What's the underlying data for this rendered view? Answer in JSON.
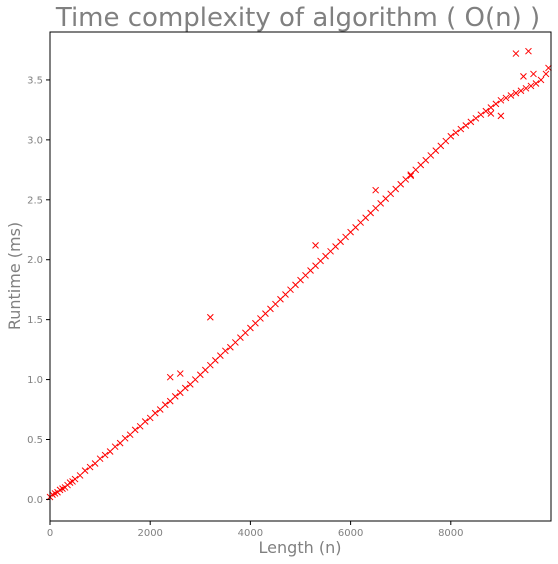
{
  "chart_data": {
    "type": "scatter",
    "title": "Time complexity of algorithm ( O(n) )",
    "xlabel": "Length (n)",
    "ylabel": "Runtime (ms)",
    "xlim": [
      0,
      10000
    ],
    "ylim": [
      -0.18,
      3.9
    ],
    "xticks": [
      0,
      2000,
      4000,
      6000,
      8000
    ],
    "yticks": [
      0.0,
      0.5,
      1.0,
      1.5,
      2.0,
      2.5,
      3.0,
      3.5
    ],
    "xtick_labels": [
      "0",
      "2000",
      "4000",
      "6000",
      "8000"
    ],
    "ytick_labels": [
      "0.0",
      "0.5",
      "1.0",
      "1.5",
      "2.0",
      "2.5",
      "3.0",
      "3.5"
    ],
    "marker": "x",
    "color": "#ff0000",
    "grid": false,
    "series": [
      {
        "x": [
          0,
          50,
          100,
          150,
          200,
          250,
          300,
          350,
          400,
          450,
          500,
          600,
          700,
          800,
          900,
          1000,
          1100,
          1200,
          1300,
          1400,
          1500,
          1600,
          1700,
          1800,
          1900,
          2000,
          2100,
          2200,
          2300,
          2400,
          2500,
          2600,
          2700,
          2800,
          2900,
          3000,
          3100,
          3200,
          3300,
          3400,
          3500,
          3600,
          3700,
          3800,
          3900,
          4000,
          4100,
          4200,
          4300,
          4400,
          4500,
          4600,
          4700,
          4800,
          4900,
          5000,
          5100,
          5200,
          5300,
          5400,
          5500,
          5600,
          5700,
          5800,
          5900,
          6000,
          6100,
          6200,
          6300,
          6400,
          6500,
          6600,
          6700,
          6800,
          6900,
          7000,
          7100,
          7200,
          7300,
          7400,
          7500,
          7600,
          7700,
          7800,
          7900,
          8000,
          8100,
          8200,
          8300,
          8400,
          8500,
          8600,
          8700,
          8800,
          8900,
          9000,
          9100,
          9200,
          9300,
          9400,
          9500,
          9600,
          9700,
          9800,
          9900,
          9950,
          3200,
          2400,
          2600,
          5300,
          6500,
          9300,
          9550,
          9650,
          9450,
          8800,
          9000,
          7200
        ],
        "y": [
          0.02,
          0.04,
          0.05,
          0.06,
          0.08,
          0.09,
          0.1,
          0.12,
          0.14,
          0.15,
          0.17,
          0.2,
          0.24,
          0.27,
          0.3,
          0.34,
          0.37,
          0.4,
          0.44,
          0.47,
          0.51,
          0.54,
          0.58,
          0.61,
          0.65,
          0.68,
          0.72,
          0.75,
          0.79,
          0.82,
          0.86,
          0.89,
          0.93,
          0.96,
          1.0,
          1.04,
          1.08,
          1.12,
          1.16,
          1.2,
          1.24,
          1.27,
          1.31,
          1.35,
          1.39,
          1.43,
          1.47,
          1.51,
          1.55,
          1.59,
          1.63,
          1.67,
          1.71,
          1.75,
          1.79,
          1.83,
          1.87,
          1.91,
          1.95,
          1.99,
          2.03,
          2.07,
          2.11,
          2.15,
          2.19,
          2.23,
          2.27,
          2.31,
          2.35,
          2.39,
          2.43,
          2.47,
          2.51,
          2.55,
          2.59,
          2.63,
          2.67,
          2.71,
          2.75,
          2.79,
          2.83,
          2.87,
          2.91,
          2.95,
          2.99,
          3.03,
          3.06,
          3.09,
          3.12,
          3.15,
          3.18,
          3.21,
          3.24,
          3.27,
          3.3,
          3.33,
          3.35,
          3.37,
          3.39,
          3.41,
          3.43,
          3.45,
          3.47,
          3.5,
          3.55,
          3.6,
          1.52,
          1.02,
          1.05,
          2.12,
          2.58,
          3.72,
          3.74,
          3.55,
          3.53,
          3.22,
          3.2,
          2.7
        ]
      }
    ]
  }
}
